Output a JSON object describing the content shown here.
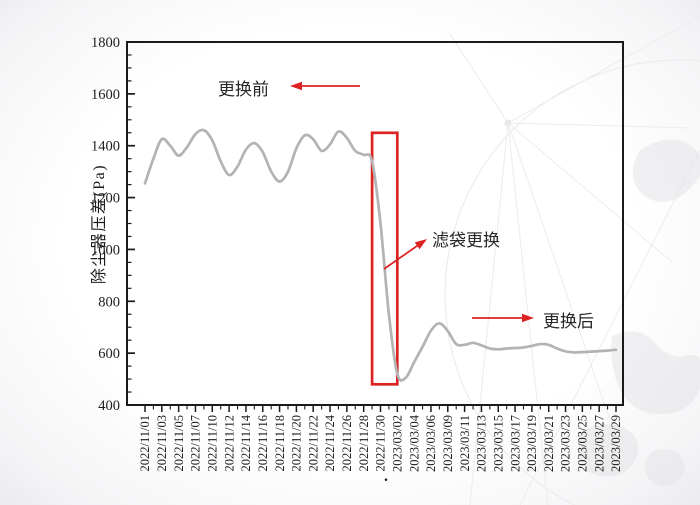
{
  "page": {
    "caption_dot": "."
  },
  "chart_data": {
    "type": "line",
    "title": "",
    "xlabel": "",
    "ylabel": "除尘器压差(Pa)",
    "ylim": [
      400,
      1800
    ],
    "y_major_step": 200,
    "y_minor_step": 50,
    "grid": false,
    "legend": "none",
    "x": [
      "2022/11/01",
      "2022/11/02",
      "2022/11/03",
      "2022/11/04",
      "2022/11/05",
      "2022/11/06",
      "2022/11/07",
      "2022/11/08",
      "2022/11/10",
      "2022/11/11",
      "2022/11/12",
      "2022/11/13",
      "2022/11/14",
      "2022/11/15",
      "2022/11/16",
      "2022/11/17",
      "2022/11/18",
      "2022/11/19",
      "2022/11/20",
      "2022/11/21",
      "2022/11/22",
      "2022/11/23",
      "2022/11/24",
      "2022/11/25",
      "2022/11/26",
      "2022/11/27",
      "2022/11/28",
      "2022/11/29",
      "2022/11/30",
      "2023/03/01",
      "2023/03/02",
      "2023/03/03",
      "2023/03/04",
      "2023/03/05",
      "2023/03/06",
      "2023/03/08",
      "2023/03/09",
      "2023/03/10",
      "2023/03/11",
      "2023/03/12",
      "2023/03/13",
      "2023/03/14",
      "2023/03/15",
      "2023/03/16",
      "2023/03/17",
      "2023/03/18",
      "2023/03/19",
      "2023/03/20",
      "2023/03/21",
      "2023/03/22",
      "2023/03/23",
      "2023/03/24",
      "2023/03/25",
      "2023/03/26",
      "2023/03/27",
      "2023/03/28",
      "2023/03/29"
    ],
    "x_major_labels": [
      "2022/11/01",
      "2022/11/03",
      "2022/11/05",
      "2022/11/07",
      "2022/11/10",
      "2022/11/12",
      "2022/11/14",
      "2022/11/16",
      "2022/11/18",
      "2022/11/20",
      "2022/11/22",
      "2022/11/24",
      "2022/11/26",
      "2022/11/28",
      "2022/11/30",
      "2023/03/02",
      "2023/03/04",
      "2023/03/06",
      "2023/03/09",
      "2023/03/11",
      "2023/03/13",
      "2023/03/15",
      "2023/03/17",
      "2023/03/19",
      "2023/03/21",
      "2023/03/23",
      "2023/03/25",
      "2023/03/27",
      "2023/03/29"
    ],
    "values": [
      1255,
      1350,
      1425,
      1400,
      1362,
      1395,
      1445,
      1460,
      1420,
      1340,
      1287,
      1320,
      1385,
      1410,
      1375,
      1300,
      1262,
      1300,
      1390,
      1440,
      1425,
      1380,
      1405,
      1455,
      1430,
      1380,
      1365,
      1340,
      1100,
      750,
      520,
      505,
      565,
      625,
      687,
      715,
      685,
      635,
      632,
      640,
      630,
      618,
      615,
      618,
      620,
      622,
      628,
      635,
      632,
      618,
      607,
      603,
      604,
      606,
      608,
      610,
      613
    ],
    "highlight_box": {
      "x_from": "2022/11/29",
      "x_to": "2023/03/02",
      "y_from": 480,
      "y_to": 1450
    },
    "annotations": {
      "before": {
        "label": "更换前",
        "arrow": "left"
      },
      "during": {
        "label": "滤袋更换",
        "arrow": "up-right-to-curve"
      },
      "after": {
        "label": "更换后",
        "arrow": "right"
      }
    },
    "colors": {
      "series_line": "#b3b3b3",
      "highlight_red": "#dd2222",
      "axis": "#1a1a1a",
      "tick_text": "#1d1d1d",
      "watermark": "#ececef"
    }
  }
}
